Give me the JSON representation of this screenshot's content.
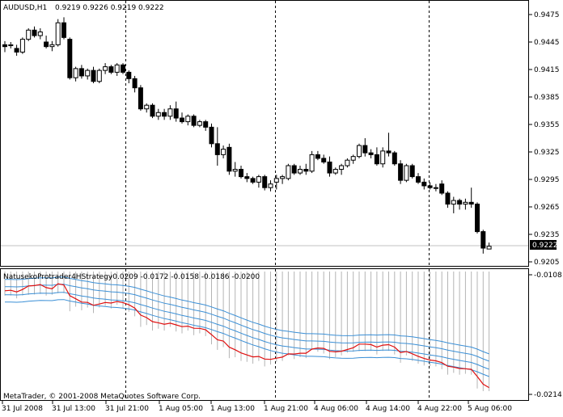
{
  "main": {
    "symbol_title": "AUDUSD,H1",
    "ohlc_values": "0.9219 0.9226 0.9219 0.9222",
    "price_labels": [
      "0.9475",
      "0.9445",
      "0.9415",
      "0.9385",
      "0.9355",
      "0.9325",
      "0.9295",
      "0.9265",
      "0.9235",
      "0.9205"
    ],
    "current_price": "0.9222"
  },
  "indicator": {
    "name": "NatusekoProtrader4HStrategy",
    "values": "-0.0209 -0.0172 -0.0158 -0.0186 -0.0200",
    "scale_top": "-0.0108",
    "scale_bottom": "-0.0214"
  },
  "time_labels": [
    "31 Jul 2008",
    "31 Jul 13:00",
    "31 Jul 21:00",
    "1 Aug 05:00",
    "1 Aug 13:00",
    "1 Aug 21:00",
    "4 Aug 06:00",
    "4 Aug 14:00",
    "4 Aug 22:00",
    "5 Aug 06:00"
  ],
  "copyright": "MetaTrader, © 2001-2008 MetaQuotes Software Corp.",
  "colors": {
    "bull_candle_fill": "#ffffff",
    "bear_candle_fill": "#000000",
    "indicator_bands": "#3a8fd6",
    "indicator_signal": "#e01010",
    "histogram": "#b4b4b4",
    "grid_separator": "#000000"
  },
  "chart_data": {
    "type": "candlestick",
    "timeframe": "H1",
    "candles": [
      [
        0.9442,
        0.9446,
        0.9434,
        0.944
      ],
      [
        0.9441,
        0.9445,
        0.9438,
        0.9442
      ],
      [
        0.9438,
        0.9442,
        0.943,
        0.9434
      ],
      [
        0.9434,
        0.945,
        0.9432,
        0.9448
      ],
      [
        0.9448,
        0.946,
        0.9446,
        0.9458
      ],
      [
        0.9458,
        0.9462,
        0.945,
        0.9452
      ],
      [
        0.9452,
        0.946,
        0.9448,
        0.9456
      ],
      [
        0.9445,
        0.9452,
        0.9438,
        0.944
      ],
      [
        0.944,
        0.9446,
        0.9435,
        0.9442
      ],
      [
        0.9442,
        0.947,
        0.944,
        0.9466
      ],
      [
        0.9466,
        0.9472,
        0.9448,
        0.945
      ],
      [
        0.9448,
        0.945,
        0.9404,
        0.9406
      ],
      [
        0.9406,
        0.9418,
        0.9402,
        0.9416
      ],
      [
        0.9416,
        0.942,
        0.9405,
        0.9408
      ],
      [
        0.9408,
        0.9416,
        0.9404,
        0.9414
      ],
      [
        0.9414,
        0.9418,
        0.94,
        0.9402
      ],
      [
        0.9402,
        0.9416,
        0.94,
        0.9414
      ],
      [
        0.9414,
        0.9422,
        0.941,
        0.9418
      ],
      [
        0.9418,
        0.942,
        0.941,
        0.9412
      ],
      [
        0.9412,
        0.9422,
        0.9408,
        0.942
      ],
      [
        0.942,
        0.9422,
        0.941,
        0.9412
      ],
      [
        0.9412,
        0.9414,
        0.94,
        0.9405
      ],
      [
        0.9405,
        0.9408,
        0.939,
        0.9395
      ],
      [
        0.9395,
        0.9398,
        0.937,
        0.9372
      ],
      [
        0.9372,
        0.9378,
        0.9368,
        0.9376
      ],
      [
        0.9376,
        0.9378,
        0.9362,
        0.9364
      ],
      [
        0.9364,
        0.9372,
        0.936,
        0.9368
      ],
      [
        0.9368,
        0.9372,
        0.936,
        0.9364
      ],
      [
        0.9364,
        0.9376,
        0.936,
        0.9372
      ],
      [
        0.9372,
        0.938,
        0.9358,
        0.9362
      ],
      [
        0.9362,
        0.9368,
        0.9356,
        0.9358
      ],
      [
        0.9358,
        0.9366,
        0.9354,
        0.9364
      ],
      [
        0.9364,
        0.9366,
        0.9352,
        0.9354
      ],
      [
        0.9354,
        0.936,
        0.9352,
        0.9358
      ],
      [
        0.9358,
        0.936,
        0.9348,
        0.9352
      ],
      [
        0.9352,
        0.9356,
        0.933,
        0.9334
      ],
      [
        0.9334,
        0.9352,
        0.931,
        0.9322
      ],
      [
        0.9322,
        0.9332,
        0.9318,
        0.9328
      ],
      [
        0.933,
        0.9334,
        0.93,
        0.9304
      ],
      [
        0.9304,
        0.9314,
        0.9298,
        0.9306
      ],
      [
        0.9306,
        0.931,
        0.9296,
        0.9298
      ],
      [
        0.9298,
        0.9302,
        0.9292,
        0.9296
      ],
      [
        0.9296,
        0.9298,
        0.929,
        0.9292
      ],
      [
        0.9292,
        0.93,
        0.9286,
        0.9298
      ],
      [
        0.9298,
        0.93,
        0.9283,
        0.9286
      ],
      [
        0.9286,
        0.9294,
        0.9282,
        0.929
      ],
      [
        0.9292,
        0.93,
        0.9284,
        0.9296
      ],
      [
        0.9296,
        0.93,
        0.929,
        0.9298
      ],
      [
        0.9296,
        0.9312,
        0.9294,
        0.931
      ],
      [
        0.931,
        0.9312,
        0.93,
        0.9302
      ],
      [
        0.9302,
        0.931,
        0.93,
        0.9306
      ],
      [
        0.9306,
        0.9312,
        0.93,
        0.9304
      ],
      [
        0.9304,
        0.9326,
        0.9302,
        0.9322
      ],
      [
        0.9322,
        0.9326,
        0.9316,
        0.9318
      ],
      [
        0.9318,
        0.9322,
        0.9312,
        0.9314
      ],
      [
        0.9314,
        0.932,
        0.9298,
        0.9302
      ],
      [
        0.9302,
        0.9308,
        0.93,
        0.9306
      ],
      [
        0.9306,
        0.9312,
        0.93,
        0.931
      ],
      [
        0.931,
        0.9318,
        0.9308,
        0.9316
      ],
      [
        0.9316,
        0.9322,
        0.9312,
        0.932
      ],
      [
        0.932,
        0.9334,
        0.9318,
        0.9332
      ],
      [
        0.9332,
        0.934,
        0.932,
        0.9324
      ],
      [
        0.9324,
        0.9328,
        0.9318,
        0.9322
      ],
      [
        0.9322,
        0.933,
        0.931,
        0.9312
      ],
      [
        0.9312,
        0.933,
        0.9308,
        0.9326
      ],
      [
        0.9326,
        0.9346,
        0.932,
        0.9324
      ],
      [
        0.9324,
        0.9326,
        0.931,
        0.9312
      ],
      [
        0.9312,
        0.9316,
        0.929,
        0.9294
      ],
      [
        0.9294,
        0.9312,
        0.9292,
        0.931
      ],
      [
        0.931,
        0.9312,
        0.9296,
        0.9298
      ],
      [
        0.9298,
        0.9302,
        0.929,
        0.9292
      ],
      [
        0.9292,
        0.9296,
        0.9284,
        0.9288
      ],
      [
        0.9288,
        0.9292,
        0.9284,
        0.9286
      ],
      [
        0.9286,
        0.929,
        0.9282,
        0.9286
      ],
      [
        0.929,
        0.9294,
        0.9278,
        0.928
      ],
      [
        0.928,
        0.9282,
        0.9264,
        0.9268
      ],
      [
        0.9268,
        0.9276,
        0.9258,
        0.9272
      ],
      [
        0.9272,
        0.9274,
        0.9262,
        0.9268
      ],
      [
        0.9268,
        0.9274,
        0.9262,
        0.927
      ],
      [
        0.927,
        0.9286,
        0.9264,
        0.9268
      ],
      [
        0.9268,
        0.927,
        0.9236,
        0.9238
      ],
      [
        0.9238,
        0.924,
        0.9214,
        0.922
      ],
      [
        0.9219,
        0.9226,
        0.9219,
        0.9222
      ]
    ],
    "ylim": [
      0.9205,
      0.9475
    ],
    "vertical_separators": [
      "31 Jul 21:00",
      "1 Aug 21:00",
      "4 Aug 22:00"
    ],
    "indicator": {
      "name": "NatusekoProtrader4HStrategy",
      "ylim": [
        -0.0214,
        -0.0108
      ]
    }
  }
}
